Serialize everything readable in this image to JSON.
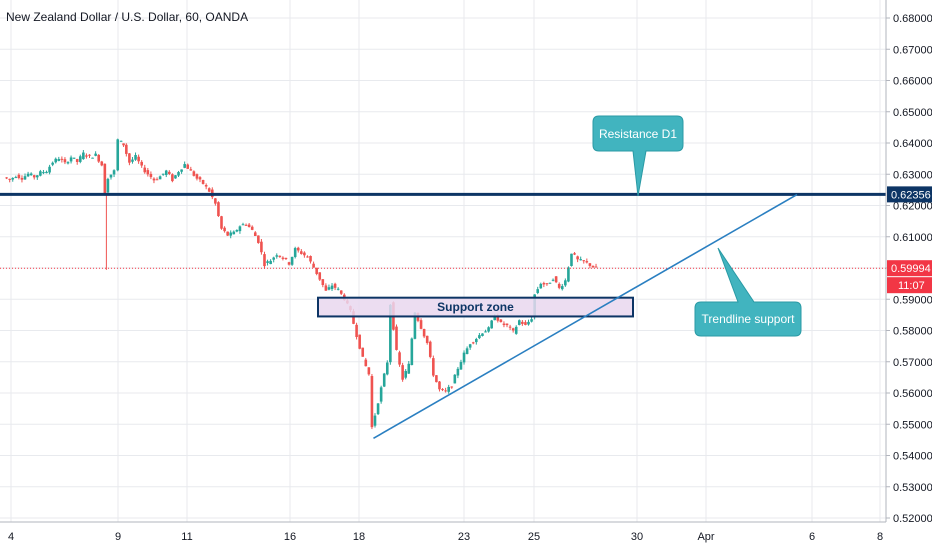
{
  "header": {
    "title": "New Zealand Dollar / U.S. Dollar, 60, OANDA"
  },
  "colors": {
    "bull": "#26a69a",
    "bear": "#ef5350",
    "resistance": "#0d3565",
    "trendline": "#2a7fc1",
    "current_price": "#f23645",
    "support_fill": "#e9d7ee",
    "support_border": "#0d3565",
    "callout_fill": "#41b4bf",
    "grid": "#e8eaee"
  },
  "chart_data": {
    "type": "candlestick",
    "title": "New Zealand Dollar / U.S. Dollar, 60, OANDA",
    "y_ticks": [
      "0.68000",
      "0.67000",
      "0.66000",
      "0.65000",
      "0.64000",
      "0.63000",
      "0.62000",
      "0.61000",
      "0.60000",
      "0.59000",
      "0.58000",
      "0.57000",
      "0.56000",
      "0.55000",
      "0.54000",
      "0.53000",
      "0.52000"
    ],
    "x_ticks": [
      "4",
      "9",
      "11",
      "16",
      "18",
      "23",
      "25",
      "30",
      "Apr",
      "6",
      "8"
    ],
    "ylim": [
      0.52,
      0.68
    ],
    "grid": true,
    "price_series": [
      {
        "t": 0.5,
        "p": 0.629
      },
      {
        "t": 1.5,
        "p": 0.6282
      },
      {
        "t": 2.5,
        "p": 0.6296
      },
      {
        "t": 3.5,
        "p": 0.6288
      },
      {
        "t": 4.5,
        "p": 0.6301
      },
      {
        "t": 5.5,
        "p": 0.6292
      },
      {
        "t": 6.5,
        "p": 0.6305
      },
      {
        "t": 7.5,
        "p": 0.6311
      },
      {
        "t": 8.5,
        "p": 0.6339
      },
      {
        "t": 9.5,
        "p": 0.6352
      },
      {
        "t": 10.5,
        "p": 0.6334
      },
      {
        "t": 11.5,
        "p": 0.6355
      },
      {
        "t": 12.5,
        "p": 0.634
      },
      {
        "t": 13.5,
        "p": 0.6366
      },
      {
        "t": 14.5,
        "p": 0.6355
      },
      {
        "t": 15.5,
        "p": 0.6362
      },
      {
        "t": 16.5,
        "p": 0.633
      },
      {
        "t": 17.0,
        "p": 0.624
      },
      {
        "t": 17.5,
        "p": 0.629
      },
      {
        "t": 18.5,
        "p": 0.631
      },
      {
        "t": 19.2,
        "p": 0.641
      },
      {
        "t": 20.0,
        "p": 0.6395
      },
      {
        "t": 21.0,
        "p": 0.6338
      },
      {
        "t": 22.0,
        "p": 0.6356
      },
      {
        "t": 23.0,
        "p": 0.6322
      },
      {
        "t": 24.0,
        "p": 0.6301
      },
      {
        "t": 25.0,
        "p": 0.6282
      },
      {
        "t": 26.0,
        "p": 0.6293
      },
      {
        "t": 27.0,
        "p": 0.631
      },
      {
        "t": 28.0,
        "p": 0.6282
      },
      {
        "t": 29.0,
        "p": 0.631
      },
      {
        "t": 30.0,
        "p": 0.6332
      },
      {
        "t": 31.0,
        "p": 0.6309
      },
      {
        "t": 32.0,
        "p": 0.6286
      },
      {
        "t": 33.0,
        "p": 0.627
      },
      {
        "t": 34.0,
        "p": 0.6246
      },
      {
        "t": 35.0,
        "p": 0.6205
      },
      {
        "t": 36.0,
        "p": 0.6125
      },
      {
        "t": 37.0,
        "p": 0.6105
      },
      {
        "t": 38.0,
        "p": 0.6112
      },
      {
        "t": 39.0,
        "p": 0.6135
      },
      {
        "t": 40.0,
        "p": 0.6142
      },
      {
        "t": 41.0,
        "p": 0.612
      },
      {
        "t": 42.0,
        "p": 0.6085
      },
      {
        "t": 43.0,
        "p": 0.6012
      },
      {
        "t": 44.0,
        "p": 0.6025
      },
      {
        "t": 45.0,
        "p": 0.6045
      },
      {
        "t": 46.0,
        "p": 0.6032
      },
      {
        "t": 47.0,
        "p": 0.6015
      },
      {
        "t": 48.0,
        "p": 0.606
      },
      {
        "t": 49.0,
        "p": 0.6048
      },
      {
        "t": 50.0,
        "p": 0.6035
      },
      {
        "t": 51.0,
        "p": 0.6002
      },
      {
        "t": 52.0,
        "p": 0.5965
      },
      {
        "t": 53.0,
        "p": 0.5925
      },
      {
        "t": 54.0,
        "p": 0.5945
      },
      {
        "t": 55.0,
        "p": 0.593
      },
      {
        "t": 56.0,
        "p": 0.5902
      },
      {
        "t": 57.0,
        "p": 0.586
      },
      {
        "t": 58.0,
        "p": 0.5785
      },
      {
        "t": 59.0,
        "p": 0.571
      },
      {
        "t": 60.0,
        "p": 0.566
      },
      {
        "t": 60.5,
        "p": 0.549
      },
      {
        "t": 61.0,
        "p": 0.553
      },
      {
        "t": 62.0,
        "p": 0.5615
      },
      {
        "t": 63.0,
        "p": 0.57
      },
      {
        "t": 63.5,
        "p": 0.5885
      },
      {
        "t": 64.5,
        "p": 0.5732
      },
      {
        "t": 65.5,
        "p": 0.5645
      },
      {
        "t": 66.5,
        "p": 0.569
      },
      {
        "t": 67.5,
        "p": 0.586
      },
      {
        "t": 68.5,
        "p": 0.581
      },
      {
        "t": 69.5,
        "p": 0.576
      },
      {
        "t": 70.5,
        "p": 0.566
      },
      {
        "t": 71.5,
        "p": 0.561
      },
      {
        "t": 72.5,
        "p": 0.5605
      },
      {
        "t": 73.5,
        "p": 0.5625
      },
      {
        "t": 74.5,
        "p": 0.568
      },
      {
        "t": 75.5,
        "p": 0.5725
      },
      {
        "t": 76.5,
        "p": 0.576
      },
      {
        "t": 77.5,
        "p": 0.5775
      },
      {
        "t": 78.5,
        "p": 0.5795
      },
      {
        "t": 79.5,
        "p": 0.5805
      },
      {
        "t": 80.5,
        "p": 0.585
      },
      {
        "t": 81.5,
        "p": 0.5822
      },
      {
        "t": 82.5,
        "p": 0.5815
      },
      {
        "t": 83.5,
        "p": 0.5795
      },
      {
        "t": 84.5,
        "p": 0.5832
      },
      {
        "t": 85.5,
        "p": 0.5815
      },
      {
        "t": 86.5,
        "p": 0.584
      },
      {
        "t": 87.0,
        "p": 0.5915
      },
      {
        "t": 88.0,
        "p": 0.5952
      },
      {
        "t": 89.0,
        "p": 0.5945
      },
      {
        "t": 90.0,
        "p": 0.5968
      },
      {
        "t": 91.0,
        "p": 0.5935
      },
      {
        "t": 92.0,
        "p": 0.596
      },
      {
        "t": 93.0,
        "p": 0.605
      },
      {
        "t": 94.0,
        "p": 0.6025
      },
      {
        "t": 95.0,
        "p": 0.602
      },
      {
        "t": 96.0,
        "p": 0.601
      },
      {
        "t": 97.0,
        "p": 0.5999
      }
    ],
    "resistance_level": 0.62356,
    "current_price": 0.59994,
    "current_price_label": "0.59994",
    "resistance_label": "0.62356",
    "countdown_label": "11:07",
    "support_zone": {
      "label": "Support zone",
      "top": 0.5905,
      "bottom": 0.5845
    },
    "trendline": {
      "start": {
        "t": 60.5,
        "p": 0.5455
      },
      "end": {
        "t": 127.0,
        "p": 0.6235
      }
    },
    "annotations": [
      {
        "text": "Resistance D1",
        "anchor_price": 0.62356
      },
      {
        "text": "Trendline support",
        "anchor_price": 0.605
      }
    ]
  }
}
